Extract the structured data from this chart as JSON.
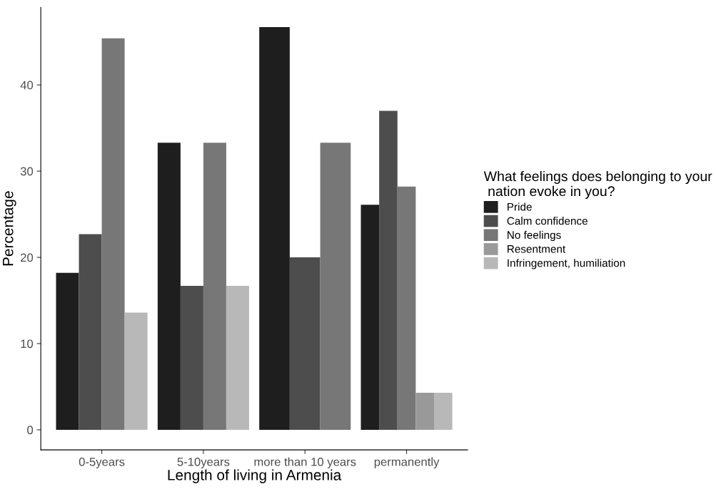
{
  "chart_data": {
    "type": "bar",
    "categories": [
      "0-5years",
      "5-10years",
      "more than 10 years",
      "permanently"
    ],
    "series": [
      {
        "name": "Pride",
        "color": "#1e1e1e",
        "values": [
          18.2,
          33.3,
          46.7,
          26.1
        ]
      },
      {
        "name": "Calm confidence",
        "color": "#4d4d4d",
        "values": [
          22.7,
          16.7,
          20.0,
          37.0
        ]
      },
      {
        "name": "No feelings",
        "color": "#777777",
        "values": [
          45.4,
          33.3,
          33.3,
          28.2
        ]
      },
      {
        "name": "Resentment",
        "color": "#999999",
        "values": [
          null,
          null,
          null,
          4.3
        ]
      },
      {
        "name": "Infringement, humiliation",
        "color": "#b8b8b8",
        "values": [
          13.6,
          16.7,
          null,
          4.3
        ]
      }
    ],
    "xlabel": "Length of living in Armenia",
    "ylabel": "Percentage",
    "legend_title": "What feelings does belonging to your\n nation evoke in you?",
    "ylim": [
      -2.33,
      49.0
    ],
    "yticks": [
      0,
      10,
      20,
      30,
      40
    ],
    "grid": false,
    "legend": "right"
  }
}
